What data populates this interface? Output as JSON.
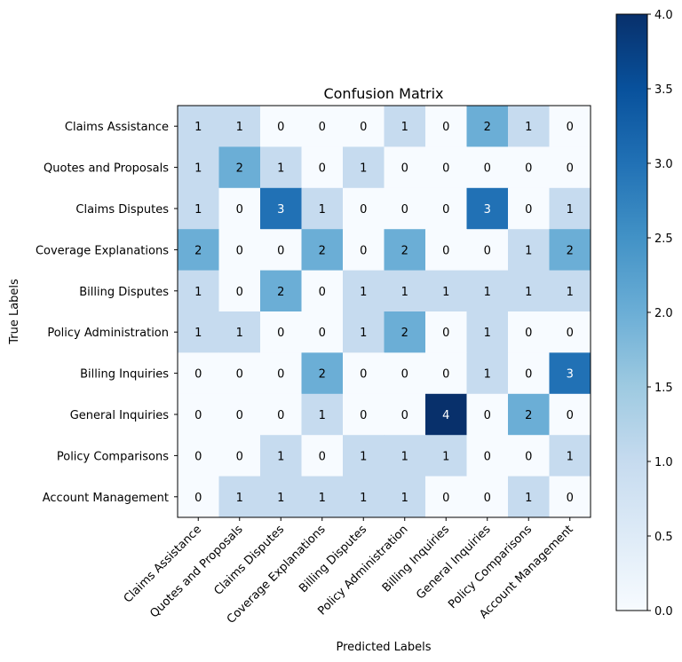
{
  "chart_data": {
    "type": "heatmap",
    "title": "Confusion Matrix",
    "xlabel": "Predicted Labels",
    "ylabel": "True Labels",
    "x_categories": [
      "Claims Assistance",
      "Quotes and Proposals",
      "Claims Disputes",
      "Coverage Explanations",
      "Billing Disputes",
      "Policy Administration",
      "Billing Inquiries",
      "General Inquiries",
      "Policy Comparisons",
      "Account Management"
    ],
    "y_categories": [
      "Claims Assistance",
      "Quotes and Proposals",
      "Claims Disputes",
      "Coverage Explanations",
      "Billing Disputes",
      "Policy Administration",
      "Billing Inquiries",
      "General Inquiries",
      "Policy Comparisons",
      "Account Management"
    ],
    "matrix": [
      [
        1,
        1,
        0,
        0,
        0,
        1,
        0,
        2,
        1,
        0
      ],
      [
        1,
        2,
        1,
        0,
        1,
        0,
        0,
        0,
        0,
        0
      ],
      [
        1,
        0,
        3,
        1,
        0,
        0,
        0,
        3,
        0,
        1
      ],
      [
        2,
        0,
        0,
        2,
        0,
        2,
        0,
        0,
        1,
        2
      ],
      [
        1,
        0,
        2,
        0,
        1,
        1,
        1,
        1,
        1,
        1
      ],
      [
        1,
        1,
        0,
        0,
        1,
        2,
        0,
        1,
        0,
        0
      ],
      [
        0,
        0,
        0,
        2,
        0,
        0,
        0,
        1,
        0,
        3
      ],
      [
        0,
        0,
        0,
        1,
        0,
        0,
        4,
        0,
        2,
        0
      ],
      [
        0,
        0,
        1,
        0,
        1,
        1,
        1,
        0,
        0,
        1
      ],
      [
        0,
        1,
        1,
        1,
        1,
        1,
        0,
        0,
        1,
        0
      ]
    ],
    "colormap": "Blues",
    "vmin": 0,
    "vmax": 4,
    "colorbar_ticks": [
      "0.0",
      "0.5",
      "1.0",
      "1.5",
      "2.0",
      "2.5",
      "3.0",
      "3.5",
      "4.0"
    ]
  }
}
